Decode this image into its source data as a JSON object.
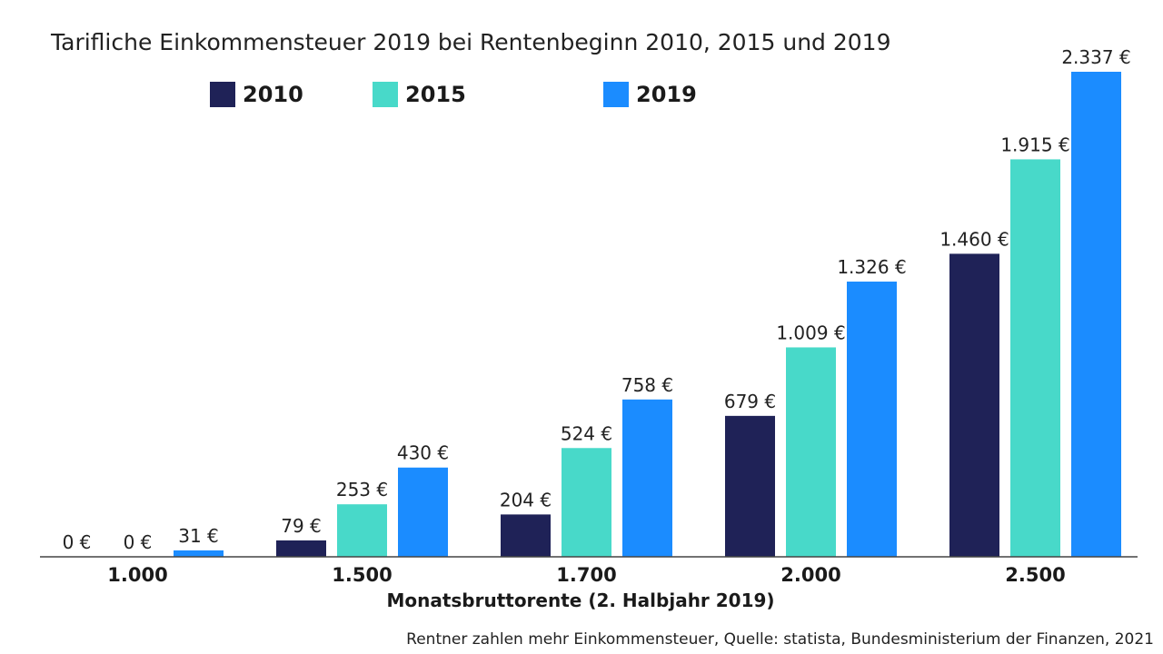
{
  "chart_data": {
    "type": "bar",
    "title": "Tarifliche Einkommensteuer 2019 bei Rentenbeginn 2010, 2015  und 2019",
    "xlabel": "Monatsbruttorente (2. Halbjahr 2019)",
    "ylabel": "",
    "categories": [
      "1.000",
      "1.500",
      "1.700",
      "2.000",
      "2.500"
    ],
    "series": [
      {
        "name": "2010",
        "color": "#1f2257",
        "values": [
          0,
          79,
          204,
          679,
          1460
        ],
        "labels": [
          "0 €",
          "79 €",
          "204 €",
          "679 €",
          "1.460 €"
        ]
      },
      {
        "name": "2015",
        "color": "#48d9c9",
        "values": [
          0,
          253,
          524,
          1009,
          1915
        ],
        "labels": [
          "0 €",
          "253 €",
          "524 €",
          "1.009 €",
          "1.915 €"
        ]
      },
      {
        "name": "2019",
        "color": "#1b8cff",
        "values": [
          31,
          430,
          758,
          1326,
          2337
        ],
        "labels": [
          "31 €",
          "430 €",
          "758 €",
          "1.326 €",
          "2.337 €"
        ]
      }
    ],
    "ylim": [
      0,
      2337
    ],
    "grid": false,
    "legend_position": "top"
  },
  "source": "Rentner zahlen mehr Einkommensteuer, Quelle: statista, Bundesministerium der Finanzen, 2021"
}
